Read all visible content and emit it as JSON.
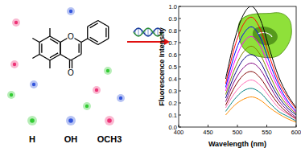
{
  "chart_data": {
    "type": "line",
    "x_label": "Wavelength (nm)",
    "y_label": "Fluorescence Intensity",
    "x": [
      480,
      495,
      510,
      525,
      540,
      555,
      570,
      585,
      600
    ],
    "series": [
      {
        "color": "#000000",
        "values": [
          0.4,
          0.72,
          0.93,
          1.0,
          0.88,
          0.64,
          0.42,
          0.27,
          0.16
        ]
      },
      {
        "color": "#ff0000",
        "values": [
          0.36,
          0.66,
          0.85,
          0.91,
          0.8,
          0.58,
          0.38,
          0.25,
          0.15
        ]
      },
      {
        "color": "#0000ff",
        "values": [
          0.33,
          0.6,
          0.77,
          0.83,
          0.73,
          0.53,
          0.35,
          0.22,
          0.13
        ]
      },
      {
        "color": "#ff00ff",
        "values": [
          0.3,
          0.54,
          0.7,
          0.75,
          0.66,
          0.48,
          0.32,
          0.2,
          0.12
        ]
      },
      {
        "color": "#808000",
        "values": [
          0.27,
          0.48,
          0.62,
          0.67,
          0.59,
          0.43,
          0.28,
          0.18,
          0.11
        ]
      },
      {
        "color": "#000080",
        "values": [
          0.24,
          0.43,
          0.56,
          0.6,
          0.53,
          0.38,
          0.25,
          0.16,
          0.1
        ]
      },
      {
        "color": "#800080",
        "values": [
          0.21,
          0.38,
          0.49,
          0.53,
          0.47,
          0.34,
          0.22,
          0.14,
          0.08
        ]
      },
      {
        "color": "#800000",
        "values": [
          0.18,
          0.33,
          0.43,
          0.46,
          0.4,
          0.29,
          0.19,
          0.12,
          0.07
        ]
      },
      {
        "color": "#ff69b4",
        "values": [
          0.16,
          0.28,
          0.36,
          0.39,
          0.34,
          0.25,
          0.16,
          0.11,
          0.06
        ]
      },
      {
        "color": "#008080",
        "values": [
          0.13,
          0.23,
          0.3,
          0.32,
          0.28,
          0.2,
          0.13,
          0.09,
          0.05
        ]
      },
      {
        "color": "#ff8c00",
        "values": [
          0.1,
          0.18,
          0.23,
          0.25,
          0.22,
          0.16,
          0.11,
          0.07,
          0.04
        ]
      }
    ],
    "xlim": [
      400,
      600
    ],
    "xticks": [
      400,
      450,
      500,
      550,
      600
    ],
    "ylim": [
      0,
      1
    ],
    "yticks": [
      {
        "value": 0,
        "label": "0.0"
      },
      {
        "value": 0.1,
        "label": "0.1"
      },
      {
        "value": 0.2,
        "label": "0.2"
      },
      {
        "value": 0.3,
        "label": "0.3"
      },
      {
        "value": 0.4,
        "label": "0.4"
      },
      {
        "value": 0.5,
        "label": "0.5"
      },
      {
        "value": 0.6,
        "label": "0.6"
      },
      {
        "value": 0.7,
        "label": "0.7"
      },
      {
        "value": 0.8,
        "label": "0.8"
      },
      {
        "value": 0.9,
        "label": "0.9"
      },
      {
        "value": 1,
        "label": "1.0"
      }
    ],
    "grid": false
  },
  "diagram": {
    "molecule": {
      "labels": [
        "O",
        "O"
      ]
    },
    "legend": [
      {
        "label": "H",
        "color": "#33cc33"
      },
      {
        "label": "OH",
        "color": "#3355dd"
      },
      {
        "label": "OCH3",
        "color": "#ee3377"
      }
    ]
  }
}
